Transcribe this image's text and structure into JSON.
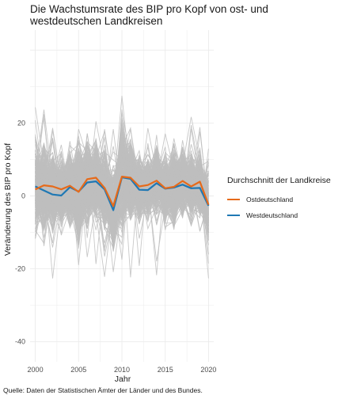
{
  "chart_data": {
    "type": "line",
    "title": "Die Wachstumsrate des BIP pro Kopf von ost- und westdeutschen Landkreisen",
    "xlabel": "Jahr",
    "ylabel": "Veränderung des BIP pro Kopf",
    "caption": "Quelle: Daten der Statistischen Ämter der Länder und des Bundes.",
    "xlim": [
      1999.4,
      2020.6
    ],
    "ylim": [
      -45.5,
      45.5
    ],
    "x_ticks": [
      2000,
      2005,
      2010,
      2015,
      2020
    ],
    "y_ticks": [
      -40,
      -20,
      0,
      20
    ],
    "grid": true,
    "legend": {
      "title": "Durchschnitt der Landkreise",
      "position": "right"
    },
    "x": [
      2000,
      2001,
      2002,
      2003,
      2004,
      2005,
      2006,
      2007,
      2008,
      2009,
      2010,
      2011,
      2012,
      2013,
      2014,
      2015,
      2016,
      2017,
      2018,
      2019,
      2020
    ],
    "series": [
      {
        "name": "Ostdeutschland",
        "color": "#E66A1A",
        "values": [
          1.8,
          2.9,
          2.6,
          1.8,
          2.8,
          1.1,
          4.6,
          5.0,
          2.2,
          -2.8,
          5.3,
          5.0,
          2.6,
          3.0,
          4.2,
          2.1,
          2.5,
          4.1,
          2.6,
          3.9,
          -2.4
        ]
      },
      {
        "name": "Westdeutschland",
        "color": "#1F78B4",
        "values": [
          2.6,
          1.5,
          0.4,
          0.1,
          2.4,
          1.2,
          3.7,
          4.0,
          1.8,
          -3.9,
          5.1,
          4.7,
          1.7,
          1.6,
          3.5,
          2.0,
          2.3,
          3.1,
          2.1,
          2.2,
          -2.7
        ]
      }
    ],
    "county_lines_color": "#BEBEBE",
    "county_lines_count": 400
  }
}
